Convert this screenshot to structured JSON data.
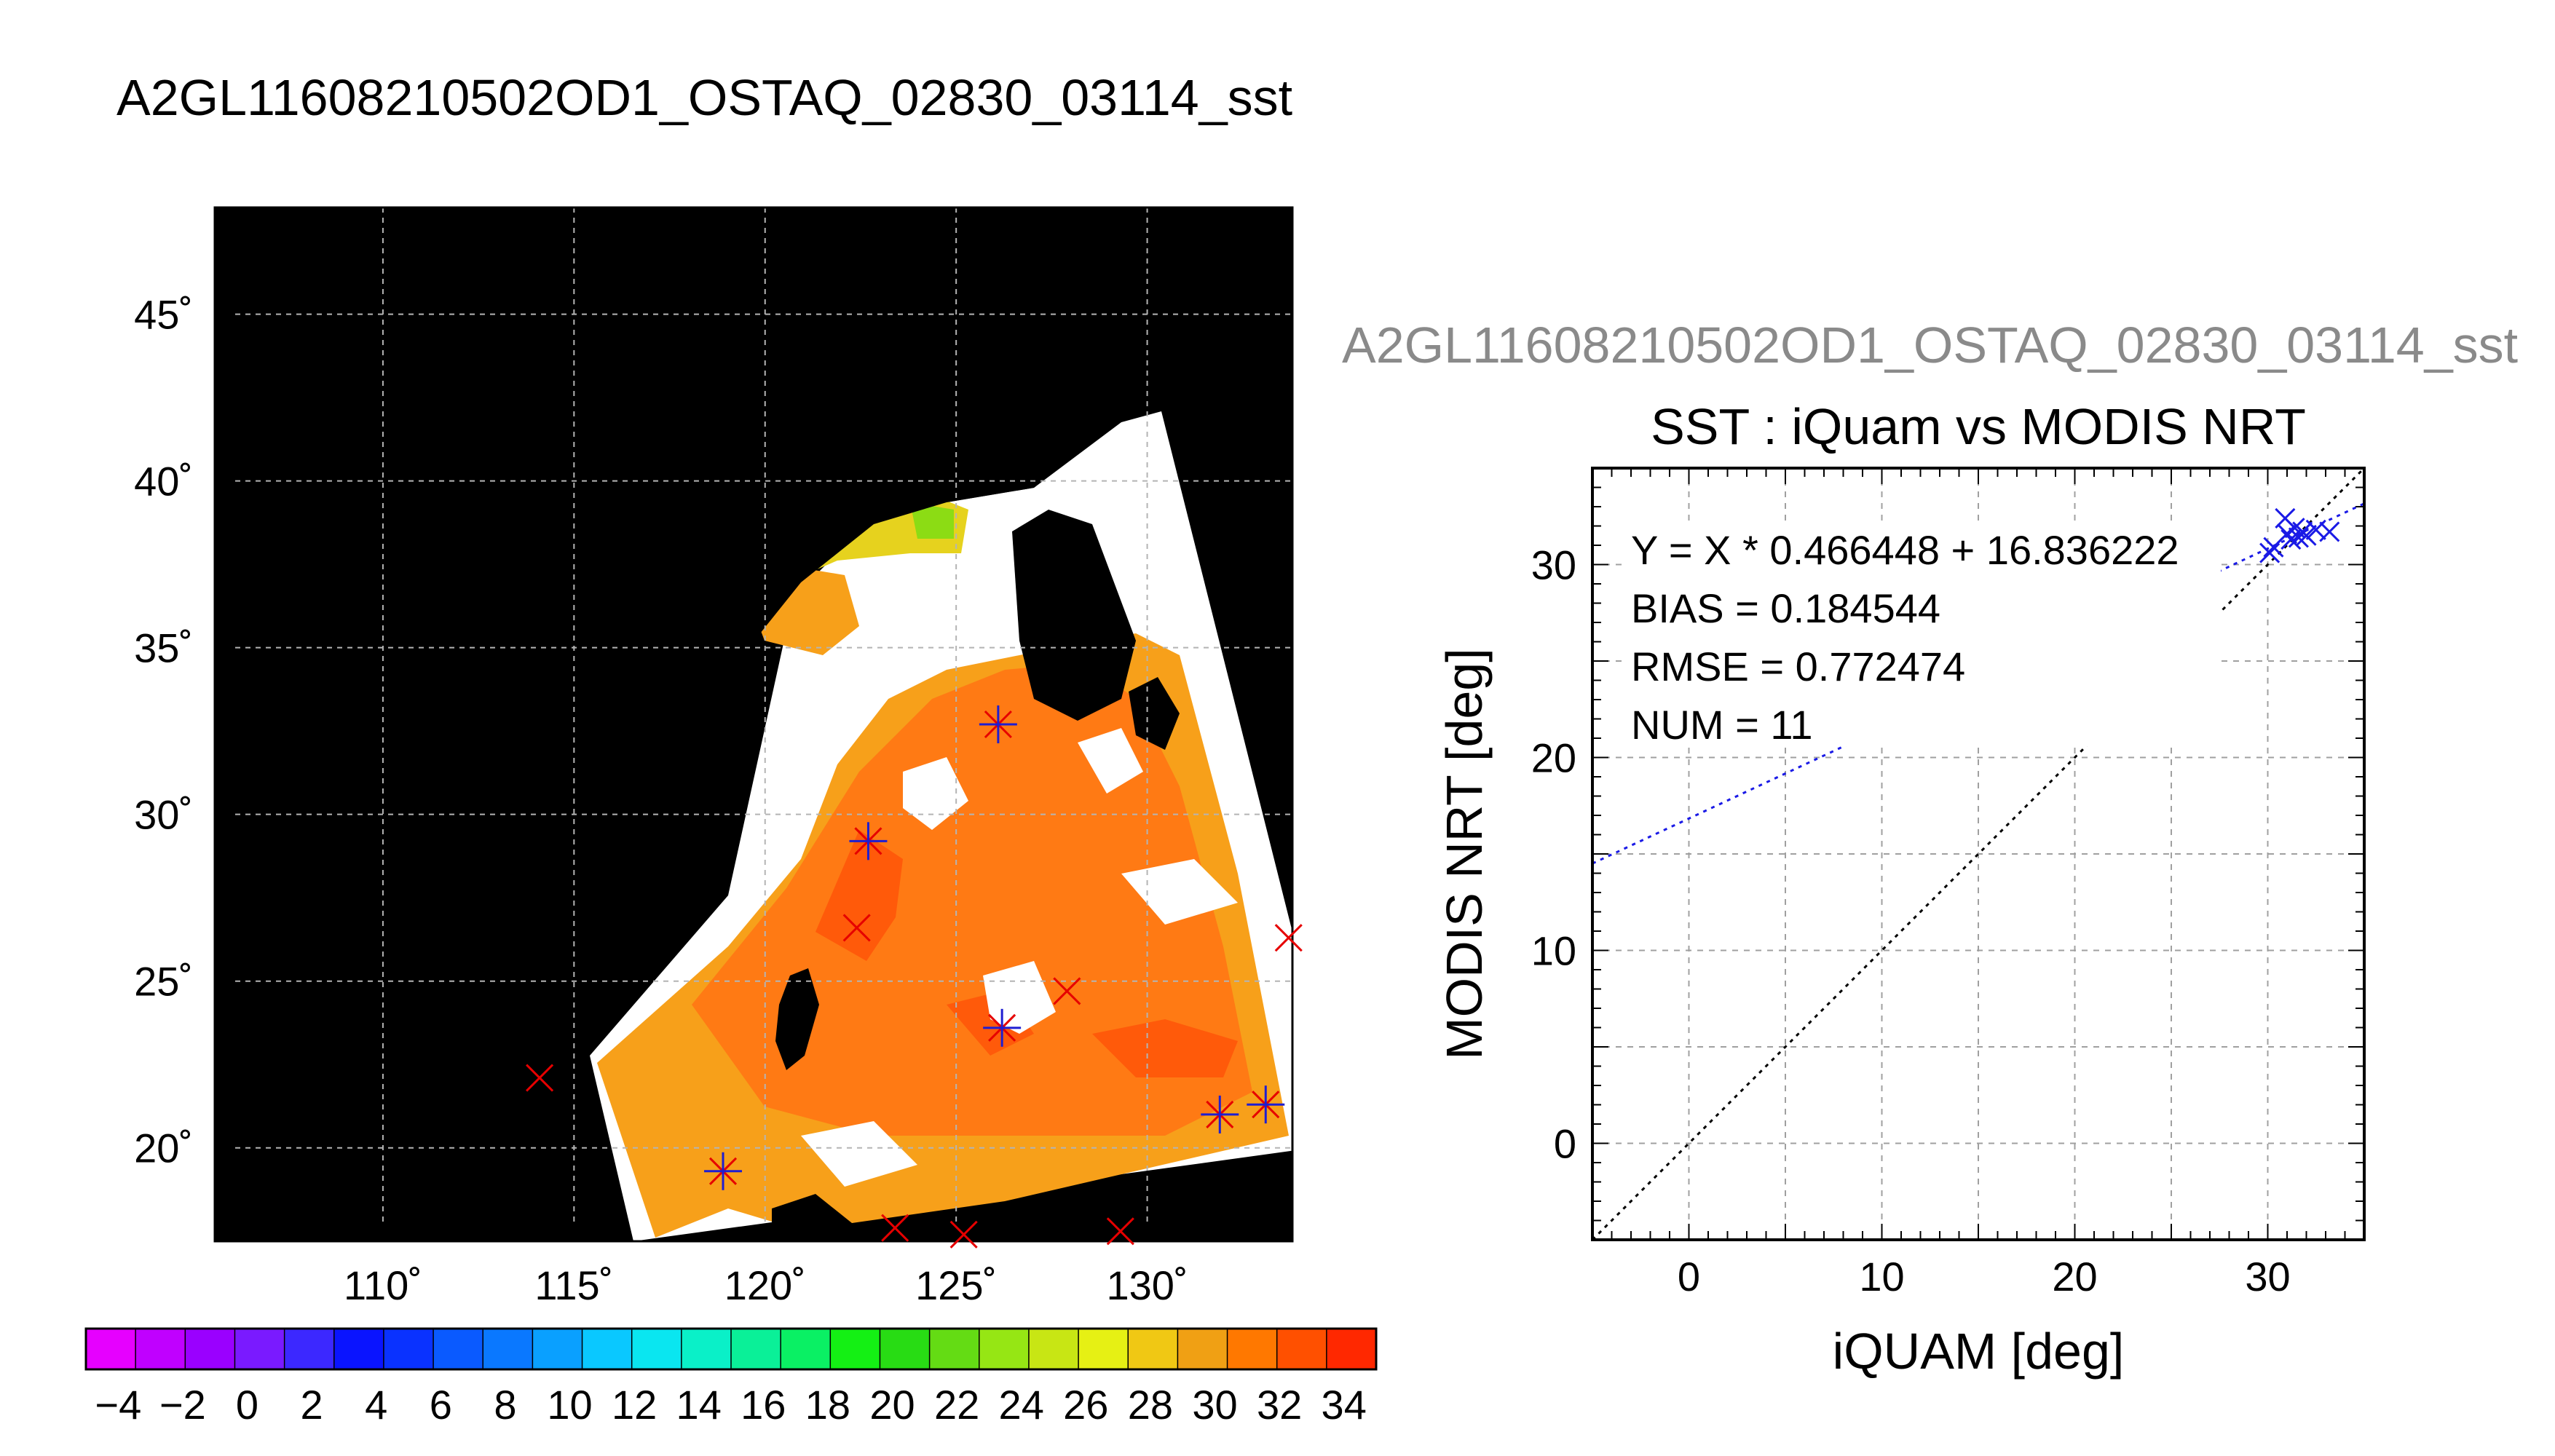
{
  "page_title": "A2GL11608210502OD1_OSTAQ_02830_03114_sst",
  "chart_data": [
    {
      "type": "heatmap",
      "subtype": "geographic-map",
      "title": "A2GL11608210502OD1_OSTAQ_02830_03114_sst",
      "xlabel": "",
      "ylabel": "",
      "xlim": [
        105.6,
        133.8
      ],
      "ylim": [
        17.2,
        48.2
      ],
      "x_ticks": [
        110,
        115,
        120,
        125,
        130
      ],
      "x_tick_labels": [
        "110˚",
        "115˚",
        "120˚",
        "125˚",
        "130˚"
      ],
      "y_ticks": [
        20,
        25,
        30,
        35,
        40,
        45
      ],
      "y_tick_labels": [
        "20˚",
        "25˚",
        "30˚",
        "35˚",
        "40˚",
        "45˚"
      ],
      "grid": true,
      "background_color": "#000000",
      "colorbar": {
        "range": [
          -5,
          35
        ],
        "tick_values": [
          -4,
          -2,
          0,
          2,
          4,
          6,
          8,
          10,
          12,
          14,
          16,
          18,
          20,
          22,
          24,
          26,
          28,
          30,
          32,
          34
        ],
        "tick_labels": [
          "−4",
          "−2",
          "0",
          "2",
          "4",
          "6",
          "8",
          "10",
          "12",
          "14",
          "16",
          "18",
          "20",
          "22",
          "24",
          "26",
          "28",
          "30",
          "32",
          "34"
        ],
        "colors": [
          "#e600ff",
          "#c000ff",
          "#9a00ff",
          "#7a1aff",
          "#3c28ff",
          "#0a14ff",
          "#0a32ff",
          "#0a5aff",
          "#0a78ff",
          "#0aa0ff",
          "#0ac8ff",
          "#0ae6f0",
          "#0af0c8",
          "#0af098",
          "#0af064",
          "#14f014",
          "#28dc14",
          "#64dc14",
          "#96e614",
          "#c8e614",
          "#e6f014",
          "#f0c814",
          "#f0a014",
          "#ff7800",
          "#ff5000",
          "#ff2800"
        ]
      },
      "iquam_points": [
        {
          "lon": 126.1,
          "lat": 32.7,
          "matched": true
        },
        {
          "lon": 122.7,
          "lat": 29.2,
          "matched": true
        },
        {
          "lon": 126.2,
          "lat": 23.6,
          "matched": true
        },
        {
          "lon": 118.9,
          "lat": 19.3,
          "matched": true
        },
        {
          "lon": 131.9,
          "lat": 21.0,
          "matched": true
        },
        {
          "lon": 133.1,
          "lat": 21.3,
          "matched": true
        },
        {
          "lon": 122.4,
          "lat": 26.6,
          "matched": false
        },
        {
          "lon": 127.9,
          "lat": 24.7,
          "matched": false
        },
        {
          "lon": 114.1,
          "lat": 22.1,
          "matched": false
        },
        {
          "lon": 133.7,
          "lat": 26.3,
          "matched": false
        },
        {
          "lon": 123.4,
          "lat": 17.6,
          "matched": false
        },
        {
          "lon": 125.2,
          "lat": 17.4,
          "matched": false
        },
        {
          "lon": 129.3,
          "lat": 17.5,
          "matched": false
        }
      ],
      "marker_colors": {
        "matched_x": "#e60000",
        "matched_plus": "#1e1ed2",
        "unmatched": "#e60000"
      }
    },
    {
      "type": "scatter",
      "header": "A2GL11608210502OD1_OSTAQ_02830_03114_sst",
      "title": "SST : iQuam vs MODIS NRT",
      "xlabel": "iQUAM [deg]",
      "ylabel": "MODIS NRT [deg]",
      "xlim": [
        -5,
        35
      ],
      "ylim": [
        -5,
        35
      ],
      "x_ticks": [
        0,
        10,
        20,
        30
      ],
      "y_ticks": [
        0,
        10,
        20,
        30
      ],
      "grid": true,
      "points": [
        {
          "x": 30.1,
          "y": 30.6
        },
        {
          "x": 30.3,
          "y": 30.9
        },
        {
          "x": 30.9,
          "y": 32.4
        },
        {
          "x": 31.0,
          "y": 31.6
        },
        {
          "x": 31.2,
          "y": 31.3
        },
        {
          "x": 31.4,
          "y": 31.9
        },
        {
          "x": 31.6,
          "y": 31.4
        },
        {
          "x": 31.8,
          "y": 31.7
        },
        {
          "x": 32.0,
          "y": 31.5
        },
        {
          "x": 32.5,
          "y": 31.8
        },
        {
          "x": 33.2,
          "y": 31.7
        }
      ],
      "fit": {
        "slope": 0.466448,
        "intercept": 16.836222
      },
      "stats_text": [
        "Y = X * 0.466448 + 16.836222",
        "BIAS = 0.184544",
        "RMSE = 0.772474",
        "NUM = 11"
      ],
      "point_color": "#1a1ae6",
      "fit_color": "#1a1ae6",
      "identity_color": "#000000"
    }
  ]
}
